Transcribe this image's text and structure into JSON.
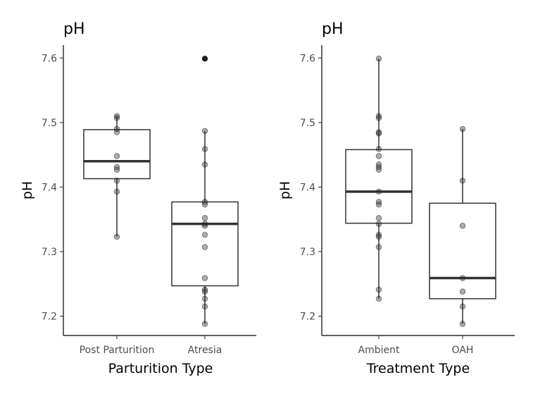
{
  "chart_data": [
    {
      "type": "box",
      "title": "pH",
      "xlabel": "Parturition Type",
      "ylabel": "pH",
      "ylim": [
        7.17,
        7.62
      ],
      "yticks": [
        "7.2",
        "7.3",
        "7.4",
        "7.5",
        "7.6"
      ],
      "grid": false,
      "categories": [
        "Post Parturition",
        "Atresia"
      ],
      "boxes": [
        {
          "category": "Post Parturition",
          "q1": 7.413,
          "median": 7.44,
          "q3": 7.489,
          "whisker_low": 7.323,
          "whisker_high": 7.51,
          "outliers": [],
          "points": [
            7.51,
            7.507,
            7.49,
            7.485,
            7.448,
            7.431,
            7.427,
            7.41,
            7.393,
            7.323
          ]
        },
        {
          "category": "Atresia",
          "q1": 7.247,
          "median": 7.343,
          "q3": 7.377,
          "whisker_low": 7.188,
          "whisker_high": 7.487,
          "outliers": [
            7.599
          ],
          "points": [
            7.599,
            7.487,
            7.459,
            7.435,
            7.377,
            7.373,
            7.352,
            7.343,
            7.34,
            7.326,
            7.307,
            7.259,
            7.241,
            7.238,
            7.227,
            7.215,
            7.188
          ]
        }
      ]
    },
    {
      "type": "box",
      "title": "pH",
      "xlabel": "Treatment Type",
      "ylabel": "pH",
      "ylim": [
        7.17,
        7.62
      ],
      "yticks": [
        "7.2",
        "7.3",
        "7.4",
        "7.5",
        "7.6"
      ],
      "grid": false,
      "categories": [
        "Ambient",
        "OAH"
      ],
      "boxes": [
        {
          "category": "Ambient",
          "q1": 7.344,
          "median": 7.393,
          "q3": 7.458,
          "whisker_low": 7.227,
          "whisker_high": 7.599,
          "outliers": [],
          "points": [
            7.599,
            7.51,
            7.507,
            7.485,
            7.483,
            7.459,
            7.448,
            7.435,
            7.431,
            7.427,
            7.393,
            7.377,
            7.373,
            7.352,
            7.343,
            7.326,
            7.323,
            7.307,
            7.241,
            7.227
          ]
        },
        {
          "category": "OAH",
          "q1": 7.227,
          "median": 7.259,
          "q3": 7.375,
          "whisker_low": 7.188,
          "whisker_high": 7.49,
          "outliers": [],
          "points": [
            7.49,
            7.41,
            7.34,
            7.259,
            7.238,
            7.215,
            7.188
          ]
        }
      ]
    }
  ]
}
